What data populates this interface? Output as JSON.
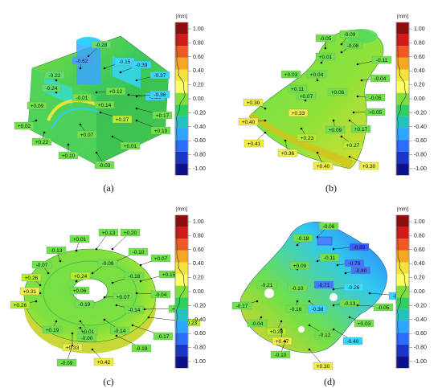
{
  "figure": {
    "colorbar": {
      "unit": "[mm]",
      "ticks": [
        "1.00",
        "0.80",
        "0.60",
        "0.40",
        "0.20",
        "0.00",
        "-0.20",
        "-0.40",
        "-0.60",
        "-0.80",
        "-1.00"
      ]
    },
    "panels": [
      {
        "caption": "(a)",
        "labels": [
          {
            "text": "-0.28",
            "c": "#5fe06a"
          },
          {
            "text": "-0.62",
            "c": "#4aa0ff"
          },
          {
            "text": "-0.15",
            "c": "#34e0ff"
          },
          {
            "text": "-0.39",
            "c": "#38d4ff"
          },
          {
            "text": "-0.22",
            "c": "#5fe06a"
          },
          {
            "text": "-0.37",
            "c": "#38d4ff"
          },
          {
            "text": "-0.24",
            "c": "#5fe06a"
          },
          {
            "text": "+0.12",
            "c": "#6fe24a"
          },
          {
            "text": "-0.36",
            "c": "#38d4ff"
          },
          {
            "text": "-0.38",
            "c": "#38d4ff"
          },
          {
            "text": "+0.09",
            "c": "#6fe24a"
          },
          {
            "text": "-0.01",
            "c": "#6fe24a"
          },
          {
            "text": "+0.14",
            "c": "#6fe24a"
          },
          {
            "text": "+0.17",
            "c": "#6fe24a"
          },
          {
            "text": "+0.27",
            "c": "#b4ee30"
          },
          {
            "text": "+0.02",
            "c": "#6fe24a"
          },
          {
            "text": "+0.19",
            "c": "#6fe24a"
          },
          {
            "text": "+0.07",
            "c": "#6fe24a"
          },
          {
            "text": "+0.22",
            "c": "#6fe24a"
          },
          {
            "text": "+0.01",
            "c": "#6fe24a"
          },
          {
            "text": "+0.10",
            "c": "#6fe24a"
          },
          {
            "text": "-0.03",
            "c": "#6fe24a"
          }
        ]
      },
      {
        "caption": "(b)",
        "labels": [
          {
            "text": "-0.05",
            "c": "#6fe24a"
          },
          {
            "text": "-0.09",
            "c": "#6fe24a"
          },
          {
            "text": "-0.08",
            "c": "#6fe24a"
          },
          {
            "text": "+0.01",
            "c": "#6fe24a"
          },
          {
            "text": "-0.11",
            "c": "#6fe24a"
          },
          {
            "text": "+0.03",
            "c": "#6fe24a"
          },
          {
            "text": "+0.04",
            "c": "#6fe24a"
          },
          {
            "text": "-0.04",
            "c": "#6fe24a"
          },
          {
            "text": "+0.11",
            "c": "#6fe24a"
          },
          {
            "text": "+0.06",
            "c": "#6fe24a"
          },
          {
            "text": "+0.07",
            "c": "#6fe24a"
          },
          {
            "text": "-0.05",
            "c": "#6fe24a"
          },
          {
            "text": "+0.30",
            "c": "#ecf046"
          },
          {
            "text": "+0.33",
            "c": "#ecf046"
          },
          {
            "text": "+0.05",
            "c": "#6fe24a"
          },
          {
            "text": "+0.40",
            "c": "#f2ec3a"
          },
          {
            "text": "+0.09",
            "c": "#6fe24a"
          },
          {
            "text": "+0.17",
            "c": "#6fe24a"
          },
          {
            "text": "+0.23",
            "c": "#b4ee30"
          },
          {
            "text": "+0.41",
            "c": "#f2ec3a"
          },
          {
            "text": "+0.27",
            "c": "#b4ee30"
          },
          {
            "text": "+0.36",
            "c": "#ecf046"
          },
          {
            "text": "+0.40",
            "c": "#f2ec3a"
          },
          {
            "text": "+0.30",
            "c": "#ecf046"
          }
        ]
      },
      {
        "caption": "(c)",
        "labels": [
          {
            "text": "+0.13",
            "c": "#6fe24a"
          },
          {
            "text": "+0.20",
            "c": "#6fe24a"
          },
          {
            "text": "+0.01",
            "c": "#6fe24a"
          },
          {
            "text": "-0.13",
            "c": "#6fe24a"
          },
          {
            "text": "-0.10",
            "c": "#6fe24a"
          },
          {
            "text": "+0.07",
            "c": "#6fe24a"
          },
          {
            "text": "-0.07",
            "c": "#6fe24a"
          },
          {
            "text": "-0.09",
            "c": "#6fe24a"
          },
          {
            "text": "+0.24",
            "c": "#b4ee30"
          },
          {
            "text": "-0.18",
            "c": "#6fe24a"
          },
          {
            "text": "+0.15",
            "c": "#6fe24a"
          },
          {
            "text": "+0.26",
            "c": "#b4ee30"
          },
          {
            "text": "+0.31",
            "c": "#ecf046"
          },
          {
            "text": "+0.06",
            "c": "#6fe24a"
          },
          {
            "text": "-0.04",
            "c": "#6fe24a"
          },
          {
            "text": "+0.26",
            "c": "#b4ee30"
          },
          {
            "text": "-0.19",
            "c": "#6fe24a"
          },
          {
            "text": "+0.07",
            "c": "#6fe24a"
          },
          {
            "text": "-0.14",
            "c": "#6fe24a"
          },
          {
            "text": "+0.05",
            "c": "#6fe24a"
          },
          {
            "text": "+0.23",
            "c": "#b4ee30"
          },
          {
            "text": "+0.19",
            "c": "#6fe24a"
          },
          {
            "text": "+0.01",
            "c": "#6fe24a"
          },
          {
            "text": "-0.14",
            "c": "#6fe24a"
          },
          {
            "text": "-0.17",
            "c": "#6fe24a"
          },
          {
            "text": "-0.00",
            "c": "#6fe24a"
          },
          {
            "text": "+0.33",
            "c": "#ecf046"
          },
          {
            "text": "-0.19",
            "c": "#6fe24a"
          },
          {
            "text": "-0.09",
            "c": "#6fe24a"
          },
          {
            "text": "+0.42",
            "c": "#f2ec3a"
          }
        ]
      },
      {
        "caption": "(d)",
        "labels": [
          {
            "text": "-0.08",
            "c": "#6fe24a"
          },
          {
            "text": "-0.18",
            "c": "#6fe24a"
          },
          {
            "text": "-0.89",
            "c": "#3a5cff"
          },
          {
            "text": "-0.11",
            "c": "#6fe24a"
          },
          {
            "text": "-0.78",
            "c": "#3f78ff"
          },
          {
            "text": "+0.09",
            "c": "#6fe24a"
          },
          {
            "text": "-0.80",
            "c": "#3f78ff"
          },
          {
            "text": "-0.21",
            "c": "#6fe24a"
          },
          {
            "text": "-0.10",
            "c": "#6fe24a"
          },
          {
            "text": "-0.71",
            "c": "#3f78ff"
          },
          {
            "text": "-0.26",
            "c": "#34e0ff"
          },
          {
            "text": "-0.36",
            "c": "#38d4ff"
          },
          {
            "text": "-0.17",
            "c": "#6fe24a"
          },
          {
            "text": "-0.16",
            "c": "#6fe24a"
          },
          {
            "text": "-0.38",
            "c": "#38d4ff"
          },
          {
            "text": "-0.13",
            "c": "#6fe24a"
          },
          {
            "text": "-0.05",
            "c": "#6fe24a"
          },
          {
            "text": "-0.04",
            "c": "#6fe24a"
          },
          {
            "text": "+0.28",
            "c": "#b4ee30"
          },
          {
            "text": "+0.03",
            "c": "#6fe24a"
          },
          {
            "text": "+0.47",
            "c": "#f2ec3a"
          },
          {
            "text": "-0.12",
            "c": "#6fe24a"
          },
          {
            "text": "-0.40",
            "c": "#38d4ff"
          },
          {
            "text": "-0.10",
            "c": "#6fe24a"
          },
          {
            "text": "+0.30",
            "c": "#ecf046"
          }
        ]
      }
    ]
  }
}
